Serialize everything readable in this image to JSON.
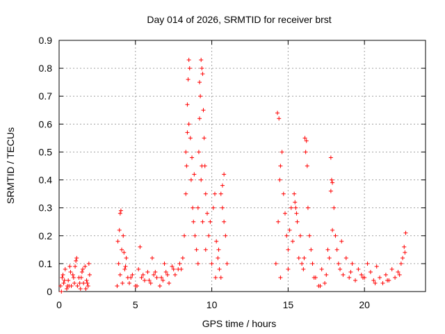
{
  "chart_data": {
    "type": "scatter",
    "title": "Day 014 of 2026, SRMTID for receiver brst",
    "xlabel": "GPS time / hours",
    "ylabel": "SRMTID / TECUs",
    "xlim": [
      0,
      24
    ],
    "ylim": [
      0,
      0.9
    ],
    "xticks": [
      0,
      5,
      10,
      15,
      20
    ],
    "xtick_labels": [
      "0",
      "5",
      "10",
      "15",
      "20"
    ],
    "yticks": [
      0,
      0.1,
      0.2,
      0.3,
      0.4,
      0.5,
      0.6,
      0.7,
      0.8,
      0.9
    ],
    "ytick_labels": [
      "0",
      "0.1",
      "0.2",
      "0.3",
      "0.4",
      "0.5",
      "0.6",
      "0.7",
      "0.8",
      "0.9"
    ],
    "grid": true,
    "legend": "none",
    "marker": "+",
    "series": [
      {
        "name": "SRMTID",
        "color": "#ff0000",
        "x": [
          0.1,
          0.2,
          0.3,
          0.4,
          0.5,
          0.6,
          0.7,
          0.8,
          0.9,
          1.0,
          1.1,
          1.2,
          1.3,
          1.4,
          1.5,
          1.6,
          1.7,
          1.8,
          1.9,
          2.0,
          0.15,
          0.35,
          0.55,
          0.75,
          0.95,
          1.15,
          1.35,
          1.55,
          1.75,
          1.95,
          0.25,
          0.65,
          1.05,
          1.45,
          1.85,
          3.8,
          3.9,
          4.0,
          4.0,
          4.05,
          4.1,
          4.2,
          4.3,
          4.4,
          4.5,
          3.85,
          3.95,
          4.15,
          4.25,
          4.35,
          4.6,
          4.8,
          5.0,
          5.2,
          5.4,
          5.6,
          5.8,
          6.0,
          6.2,
          6.4,
          6.6,
          6.8,
          7.0,
          7.2,
          7.4,
          7.6,
          7.8,
          4.7,
          5.1,
          5.5,
          5.9,
          6.3,
          6.7,
          7.1,
          7.5,
          7.9,
          5.3,
          6.1,
          6.9,
          8.0,
          8.1,
          8.2,
          8.3,
          8.35,
          8.4,
          8.45,
          8.5,
          8.55,
          8.6,
          8.65,
          8.7,
          8.75,
          8.8,
          8.85,
          8.9,
          9.0,
          9.1,
          9.15,
          9.2,
          9.25,
          9.3,
          9.35,
          9.4,
          9.45,
          9.5,
          9.55,
          9.6,
          9.7,
          9.8,
          9.9,
          10.0,
          10.1,
          10.2,
          10.3,
          10.4,
          10.5,
          10.6,
          10.7,
          10.8,
          10.9,
          11.0,
          8.4,
          8.5,
          9.2,
          9.3,
          9.4,
          9.6,
          10.6,
          10.7,
          10.8,
          8.3,
          9.1,
          9.35,
          10.25,
          10.45,
          14.2,
          14.3,
          14.4,
          14.5,
          14.6,
          14.7,
          14.8,
          14.9,
          15.0,
          15.1,
          15.2,
          15.3,
          15.4,
          15.5,
          15.6,
          15.7,
          15.8,
          15.9,
          16.0,
          16.1,
          16.2,
          16.3,
          16.4,
          16.5,
          16.6,
          16.7,
          14.35,
          14.45,
          15.45,
          15.55,
          16.15,
          16.25,
          14.5,
          15.0,
          16.05,
          16.8,
          17.0,
          17.2,
          17.4,
          17.6,
          17.7,
          17.8,
          17.85,
          17.9,
          18.0,
          18.1,
          18.2,
          18.3,
          18.4,
          18.6,
          18.8,
          19.0,
          19.2,
          19.4,
          19.6,
          19.8,
          20.0,
          20.2,
          20.4,
          20.6,
          20.8,
          21.0,
          21.2,
          21.4,
          21.6,
          21.8,
          22.0,
          22.2,
          22.4,
          22.5,
          22.6,
          22.7,
          17.1,
          17.5,
          17.8,
          17.9,
          18.5,
          19.1,
          19.9,
          20.7,
          21.5,
          22.3,
          22.65
        ],
        "y": [
          0.02,
          0.05,
          0.03,
          0.08,
          0.01,
          0.04,
          0.09,
          0.02,
          0.06,
          0.03,
          0.11,
          0.02,
          0.05,
          0.01,
          0.07,
          0.03,
          0.09,
          0.04,
          0.02,
          0.06,
          0.0,
          0.04,
          0.02,
          0.07,
          0.05,
          0.12,
          0.03,
          0.08,
          0.01,
          0.1,
          0.06,
          0.02,
          0.09,
          0.05,
          0.03,
          0.02,
          0.1,
          0.06,
          0.28,
          0.29,
          0.15,
          0.2,
          0.08,
          0.12,
          0.05,
          0.18,
          0.22,
          0.03,
          0.14,
          0.09,
          0.03,
          0.06,
          0.02,
          0.08,
          0.05,
          0.04,
          0.07,
          0.03,
          0.06,
          0.05,
          0.02,
          0.04,
          0.07,
          0.03,
          0.09,
          0.06,
          0.08,
          0.05,
          0.02,
          0.06,
          0.04,
          0.07,
          0.05,
          0.06,
          0.08,
          0.1,
          0.16,
          0.12,
          0.1,
          0.08,
          0.12,
          0.2,
          0.35,
          0.45,
          0.57,
          0.76,
          0.83,
          0.8,
          0.55,
          0.4,
          0.48,
          0.3,
          0.25,
          0.42,
          0.2,
          0.15,
          0.3,
          0.5,
          0.62,
          0.7,
          0.83,
          0.8,
          0.78,
          0.65,
          0.55,
          0.45,
          0.35,
          0.28,
          0.2,
          0.25,
          0.1,
          0.3,
          0.35,
          0.18,
          0.12,
          0.08,
          0.05,
          0.3,
          0.42,
          0.2,
          0.1,
          0.67,
          0.6,
          0.75,
          0.4,
          0.25,
          0.15,
          0.35,
          0.38,
          0.25,
          0.5,
          0.1,
          0.45,
          0.05,
          0.15,
          0.1,
          0.64,
          0.62,
          0.45,
          0.5,
          0.35,
          0.28,
          0.2,
          0.15,
          0.22,
          0.3,
          0.18,
          0.35,
          0.3,
          0.25,
          0.12,
          0.2,
          0.1,
          0.08,
          0.55,
          0.54,
          0.3,
          0.2,
          0.15,
          0.1,
          0.05,
          0.25,
          0.4,
          0.32,
          0.28,
          0.5,
          0.45,
          0.05,
          0.08,
          0.12,
          0.05,
          0.02,
          0.08,
          0.03,
          0.15,
          0.12,
          0.48,
          0.4,
          0.39,
          0.3,
          0.2,
          0.15,
          0.1,
          0.08,
          0.06,
          0.12,
          0.05,
          0.1,
          0.04,
          0.08,
          0.06,
          0.05,
          0.1,
          0.07,
          0.04,
          0.09,
          0.05,
          0.03,
          0.06,
          0.04,
          0.08,
          0.05,
          0.07,
          0.1,
          0.12,
          0.16,
          0.21,
          0.02,
          0.06,
          0.36,
          0.22,
          0.18,
          0.07,
          0.05,
          0.03,
          0.04,
          0.06,
          0.14
        ]
      }
    ]
  }
}
